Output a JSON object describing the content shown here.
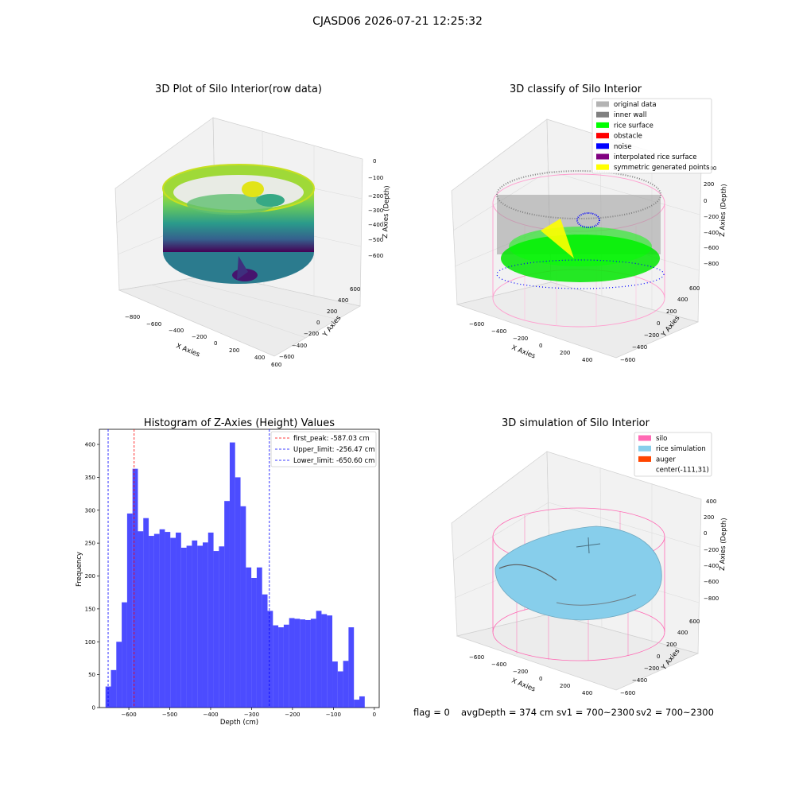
{
  "figure": {
    "suptitle": "CJASD06 2026-07-21 12:25:32",
    "status": {
      "flag": "flag = 0",
      "avg_depth": "avgDepth = 374 cm",
      "sv1": "sv1 = 700~2300",
      "sv2": "sv2 = 700~2300"
    }
  },
  "panels": {
    "raw": {
      "title": "3D Plot of Silo Interior(row data)",
      "xlabel": "X Axies",
      "ylabel": "Y Axies",
      "zlabel": "Z Axies (Depth)",
      "xticks": [
        "−800",
        "−600",
        "−400",
        "−200",
        "0",
        "200",
        "400",
        "600"
      ],
      "yticks": [
        "600",
        "400",
        "200",
        "0",
        "−200",
        "−400",
        "−600"
      ],
      "zticks": [
        "0",
        "−100",
        "−200",
        "−300",
        "−400",
        "−500",
        "−600"
      ],
      "colormap": "viridis"
    },
    "classify": {
      "title": "3D classify of Silo Interior",
      "xlabel": "X Axies",
      "ylabel": "Y Axies",
      "zlabel": "Z Axies (Depth)",
      "xticks": [
        "−600",
        "−400",
        "−200",
        "0",
        "200",
        "400"
      ],
      "yticks": [
        "600",
        "400",
        "200",
        "0",
        "−200",
        "−400",
        "−600"
      ],
      "zticks": [
        "400",
        "200",
        "0",
        "−200",
        "−400",
        "−600",
        "−800"
      ],
      "legend": [
        {
          "label": "original data",
          "color": "#b3b3b3"
        },
        {
          "label": "inner wall",
          "color": "#808080"
        },
        {
          "label": "rice surface",
          "color": "#00ff00"
        },
        {
          "label": "obstacle",
          "color": "#ff0000"
        },
        {
          "label": "noise",
          "color": "#0000ff"
        },
        {
          "label": "interpolated rice surface",
          "color": "#800080"
        },
        {
          "label": "symmetric generated points",
          "color": "#ffff00"
        }
      ]
    },
    "simulation": {
      "title": "3D simulation of Silo Interior",
      "xlabel": "X Axies",
      "ylabel": "Y Axies",
      "zlabel": "Z Axies (Depth)",
      "xticks": [
        "−600",
        "−400",
        "−200",
        "0",
        "200",
        "400"
      ],
      "yticks": [
        "600",
        "400",
        "200",
        "0",
        "−200",
        "−400",
        "−600"
      ],
      "zticks": [
        "400",
        "200",
        "0",
        "−200",
        "−400",
        "−600",
        "−800"
      ],
      "legend": [
        {
          "label": "silo",
          "color": "#ff69b4"
        },
        {
          "label": "rice simulation",
          "color": "#87ceeb"
        },
        {
          "label": "auger",
          "color": "#ff4500"
        },
        {
          "label": "center(-111,31)",
          "color": ""
        }
      ]
    }
  },
  "chart_data": {
    "type": "bar",
    "title": "Histogram of Z-Axies (Height) Values",
    "xlabel": "Depth (cm)",
    "ylabel": "Frequency",
    "xlim": [
      -672,
      12
    ],
    "ylim": [
      0,
      423
    ],
    "bin_start": -657,
    "bin_width": 13.2,
    "values": [
      32,
      57,
      100,
      160,
      295,
      363,
      268,
      288,
      261,
      264,
      271,
      267,
      258,
      266,
      243,
      246,
      254,
      246,
      251,
      266,
      238,
      245,
      314,
      403,
      350,
      306,
      213,
      197,
      213,
      172,
      147,
      125,
      122,
      126,
      136,
      135,
      134,
      133,
      135,
      147,
      142,
      140,
      70,
      55,
      71,
      122,
      12,
      17
    ],
    "bar_color": "#0000ff",
    "bar_alpha": 0.7,
    "xticks": [
      {
        "v": -600,
        "t": "−600"
      },
      {
        "v": -500,
        "t": "−500"
      },
      {
        "v": -400,
        "t": "−400"
      },
      {
        "v": -300,
        "t": "−300"
      },
      {
        "v": -200,
        "t": "−200"
      },
      {
        "v": -100,
        "t": "−100"
      },
      {
        "v": 0,
        "t": "0"
      }
    ],
    "yticks": [
      {
        "v": 0,
        "t": "0"
      },
      {
        "v": 50,
        "t": "50"
      },
      {
        "v": 100,
        "t": "100"
      },
      {
        "v": 150,
        "t": "150"
      },
      {
        "v": 200,
        "t": "200"
      },
      {
        "v": 250,
        "t": "250"
      },
      {
        "v": 300,
        "t": "300"
      },
      {
        "v": 350,
        "t": "350"
      },
      {
        "v": 400,
        "t": "400"
      }
    ],
    "vlines": [
      {
        "label": "first_peak: -587.03 cm",
        "x": -587.03,
        "color": "#ff0000"
      },
      {
        "label": "Upper_limit: -256.47 cm",
        "x": -256.47,
        "color": "#0000ff"
      },
      {
        "label": "Lower_limit: -650.60 cm",
        "x": -650.6,
        "color": "#0000ff"
      }
    ],
    "legend_position": "upper right",
    "grid": false
  }
}
